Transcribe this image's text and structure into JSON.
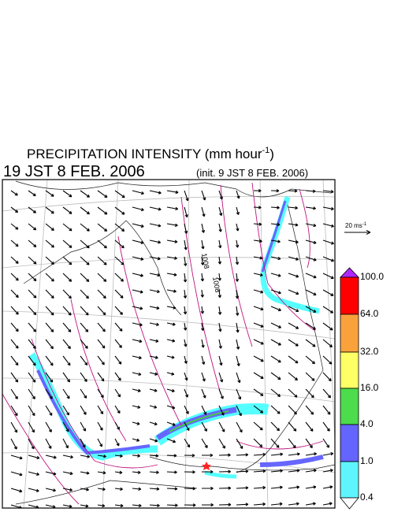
{
  "header": {
    "title": "PRECIPITATION INTENSITY (mm hour",
    "title_exponent": "-1",
    "title_close": ")",
    "valid_time": "19 JST 8 FEB. 2006",
    "init_time": "(init. 9 JST 8 FEB. 2006)"
  },
  "reference_vector": {
    "label": "20 ms",
    "exponent": "-1"
  },
  "colorbar": {
    "labels": [
      "100.0",
      "64.0",
      "32.0",
      "16.0",
      "4.0",
      "1.0",
      "0.4"
    ]
  },
  "contour_labels": [
    "1008",
    "1008"
  ]
}
